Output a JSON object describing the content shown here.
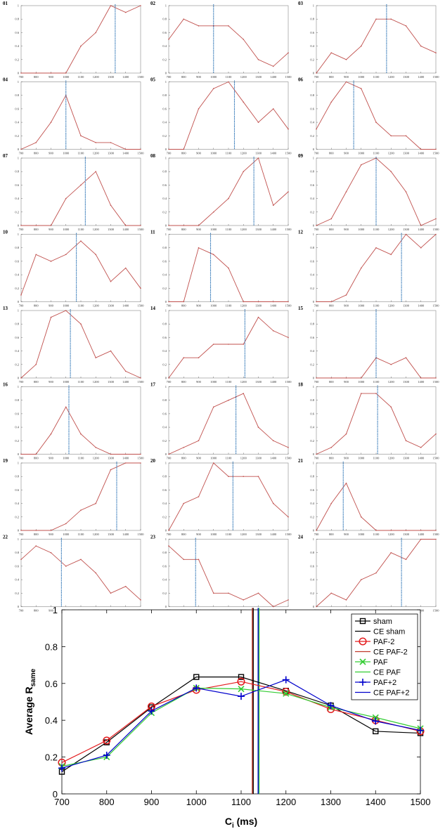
{
  "chart_data": {
    "type": "line",
    "small_multiples": {
      "x_ticks": [
        "700",
        "800",
        "900",
        "1000",
        "1100",
        "1200",
        "1300",
        "1400",
        "1500"
      ],
      "y_ticks": [
        "0",
        "0.2",
        "0.4",
        "0.6",
        "0.8",
        "1"
      ],
      "xlim": [
        700,
        1500
      ],
      "ylim": [
        0,
        1
      ],
      "line_color": "#c0504d",
      "marker_color": "#c0504d",
      "vline_color": "#2e75b6",
      "panels": [
        {
          "label": "01",
          "values": [
            0,
            0,
            0,
            0,
            0.4,
            0.6,
            1,
            0.9,
            1
          ],
          "ce": 1330
        },
        {
          "label": "02",
          "values": [
            0.5,
            0.8,
            0.7,
            0.7,
            0.7,
            0.5,
            0.2,
            0.1,
            0.3
          ],
          "ce": 1000
        },
        {
          "label": "03",
          "values": [
            0,
            0.3,
            0.2,
            0.4,
            0.8,
            0.8,
            0.7,
            0.4,
            0.3
          ],
          "ce": 1170
        },
        {
          "label": "04",
          "values": [
            0,
            0.1,
            0.4,
            0.8,
            0.2,
            0.1,
            0.1,
            0,
            0
          ],
          "ce": 1000
        },
        {
          "label": "05",
          "values": [
            0,
            0,
            0.6,
            0.9,
            1,
            0.7,
            0.4,
            0.6,
            0.3
          ],
          "ce": 1140
        },
        {
          "label": "06",
          "values": [
            0.3,
            0.7,
            1,
            0.9,
            0.4,
            0.2,
            0.2,
            0,
            0
          ],
          "ce": 950
        },
        {
          "label": "07",
          "values": [
            0,
            0,
            0,
            0.4,
            0.6,
            0.8,
            0.3,
            0,
            0
          ],
          "ce": 1130
        },
        {
          "label": "08",
          "values": [
            0,
            0,
            0,
            0.2,
            0.4,
            0.8,
            1,
            0.3,
            0.5
          ],
          "ce": 1270
        },
        {
          "label": "09",
          "values": [
            0,
            0.1,
            0.5,
            0.9,
            1,
            0.8,
            0.5,
            0,
            0.1
          ],
          "ce": 1100
        },
        {
          "label": "10",
          "values": [
            0.1,
            0.7,
            0.6,
            0.7,
            0.9,
            0.7,
            0.3,
            0.5,
            0.2
          ],
          "ce": 1070
        },
        {
          "label": "11",
          "values": [
            0,
            0,
            0.8,
            0.7,
            0.5,
            0,
            0,
            0,
            0
          ],
          "ce": 980
        },
        {
          "label": "12",
          "values": [
            0,
            0,
            0.1,
            0.5,
            0.8,
            0.7,
            1,
            0.8,
            1
          ],
          "ce": 1270
        },
        {
          "label": "13",
          "values": [
            0,
            0.2,
            0.9,
            1,
            0.8,
            0.3,
            0.4,
            0.1,
            0
          ],
          "ce": 1030
        },
        {
          "label": "14",
          "values": [
            0,
            0.3,
            0.3,
            0.5,
            0.5,
            0.5,
            0.9,
            0.7,
            0.6
          ],
          "ce": 1210
        },
        {
          "label": "15",
          "values": [
            0,
            0,
            0,
            0,
            0.3,
            0.2,
            0.3,
            0,
            0
          ],
          "ce": 1100
        },
        {
          "label": "16",
          "values": [
            0,
            0,
            0.3,
            0.7,
            0.3,
            0.1,
            0,
            0,
            0
          ],
          "ce": 1020
        },
        {
          "label": "17",
          "values": [
            0,
            0.1,
            0.2,
            0.7,
            0.8,
            0.9,
            0.4,
            0.2,
            0.1
          ],
          "ce": 1150
        },
        {
          "label": "18",
          "values": [
            0,
            0.1,
            0.3,
            0.9,
            0.9,
            0.7,
            0.2,
            0.1,
            0.3
          ],
          "ce": 1110
        },
        {
          "label": "19",
          "values": [
            0,
            0,
            0,
            0.1,
            0.3,
            0.4,
            0.9,
            1,
            1
          ],
          "ce": 1340
        },
        {
          "label": "20",
          "values": [
            0,
            0.4,
            0.5,
            1,
            0.8,
            0.8,
            0.8,
            0.4,
            0.2
          ],
          "ce": 1130
        },
        {
          "label": "21",
          "values": [
            0,
            0.4,
            0.7,
            0.2,
            0,
            0,
            0,
            0,
            0
          ],
          "ce": 880
        },
        {
          "label": "22",
          "values": [
            0.7,
            0.9,
            0.8,
            0.6,
            0.7,
            0.5,
            0.2,
            0.3,
            0.1
          ],
          "ce": 970
        },
        {
          "label": "23",
          "values": [
            0.9,
            0.7,
            0.7,
            0.2,
            0.2,
            0.1,
            0.2,
            0,
            0.1
          ],
          "ce": 880
        },
        {
          "label": "24",
          "values": [
            0,
            0.2,
            0.1,
            0.4,
            0.5,
            0.8,
            0.7,
            1,
            1
          ],
          "ce": 1270
        }
      ]
    },
    "average": {
      "type": "line",
      "x": [
        700,
        800,
        900,
        1000,
        1100,
        1200,
        1300,
        1400,
        1500
      ],
      "x_ticks": [
        "700",
        "800",
        "900",
        "1000",
        "1100",
        "1200",
        "1300",
        "1400",
        "1500"
      ],
      "y_ticks": [
        "0",
        "0.2",
        "0.4",
        "0.6",
        "0.8",
        "1"
      ],
      "xlim": [
        700,
        1500
      ],
      "ylim": [
        0,
        1
      ],
      "xlabel_main": "C",
      "xlabel_sub": "i",
      "xlabel_unit": " (ms)",
      "ylabel_main": "Average R",
      "ylabel_sub": "same",
      "legend_position": "top-right",
      "series": [
        {
          "name": "sham",
          "marker": "square",
          "color": "#000000",
          "values": [
            0.12,
            0.28,
            0.47,
            0.635,
            0.635,
            0.56,
            0.48,
            0.34,
            0.33
          ]
        },
        {
          "name": "PAF-2",
          "marker": "circle",
          "color": "#e31a1c",
          "values": [
            0.17,
            0.29,
            0.475,
            0.565,
            0.61,
            0.555,
            0.46,
            0.4,
            0.34
          ]
        },
        {
          "name": "PAF",
          "marker": "x",
          "color": "#33cc33",
          "values": [
            0.15,
            0.2,
            0.44,
            0.575,
            0.57,
            0.545,
            0.47,
            0.415,
            0.355
          ]
        },
        {
          "name": "PAF+2",
          "marker": "plus",
          "color": "#0000cc",
          "values": [
            0.14,
            0.21,
            0.45,
            0.575,
            0.53,
            0.62,
            0.48,
            0.395,
            0.345
          ]
        }
      ],
      "ce_lines": [
        {
          "name": "CE sham",
          "color": "#000000",
          "x": 1127
        },
        {
          "name": "CE PAF-2",
          "color": "#c0392b",
          "x": 1125
        },
        {
          "name": "CE PAF",
          "color": "#33cc33",
          "x": 1140
        },
        {
          "name": "CE PAF+2",
          "color": "#0000cc",
          "x": 1138
        }
      ]
    }
  }
}
